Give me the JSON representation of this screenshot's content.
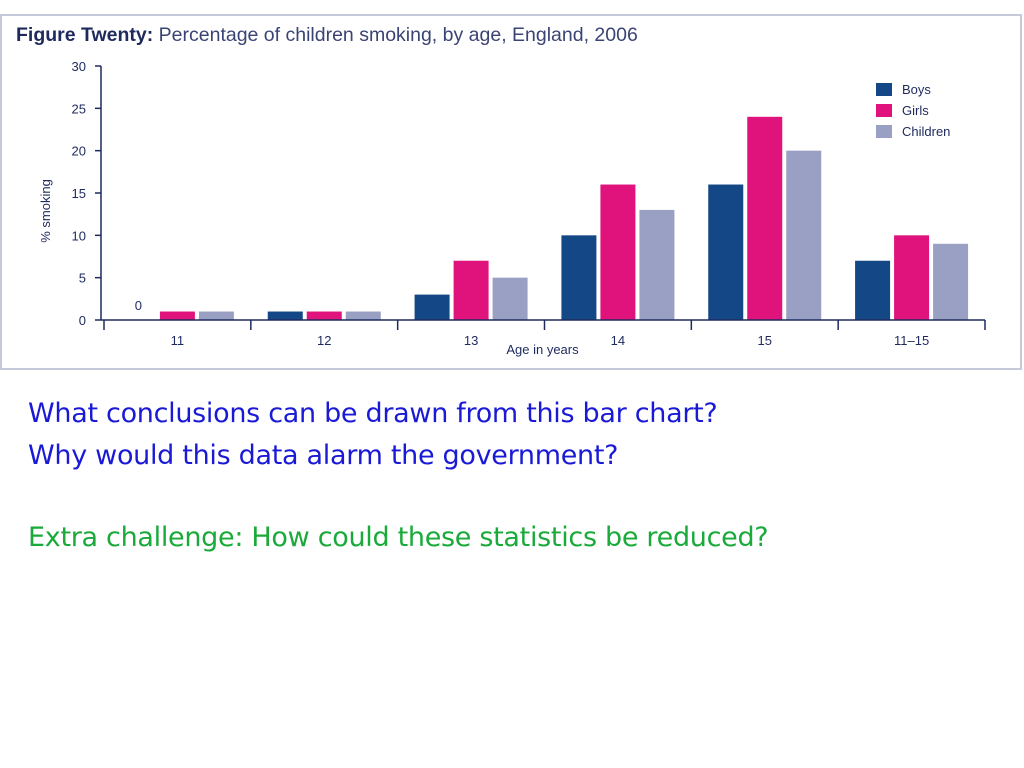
{
  "figure": {
    "label": "Figure Twenty:",
    "caption": "Percentage of children smoking, by age, England, 2006"
  },
  "chart_data": {
    "type": "bar",
    "title": "Figure Twenty: Percentage of children smoking, by age, England, 2006",
    "xlabel": "Age in years",
    "ylabel": "% smoking",
    "ylim": [
      0,
      30
    ],
    "yticks": [
      0,
      5,
      10,
      15,
      20,
      25,
      30
    ],
    "categories": [
      "11",
      "12",
      "13",
      "14",
      "15",
      "11–15"
    ],
    "series": [
      {
        "name": "Boys",
        "color": "#134786",
        "values": [
          0,
          1,
          3,
          10,
          16,
          7
        ]
      },
      {
        "name": "Girls",
        "color": "#e0127c",
        "values": [
          1,
          1,
          7,
          16,
          24,
          10
        ]
      },
      {
        "name": "Children",
        "color": "#99a0c4",
        "values": [
          1,
          1,
          5,
          13,
          20,
          9
        ]
      }
    ],
    "annotations": [
      {
        "category": "11",
        "series": "Boys",
        "text": "0"
      }
    ],
    "legend": "top-right",
    "grid": false
  },
  "questions": {
    "line1": "What conclusions can be drawn from this  bar chart?",
    "line2": "Why would this data alarm the government?",
    "challenge": "Extra challenge: How could these statistics be reduced?"
  }
}
